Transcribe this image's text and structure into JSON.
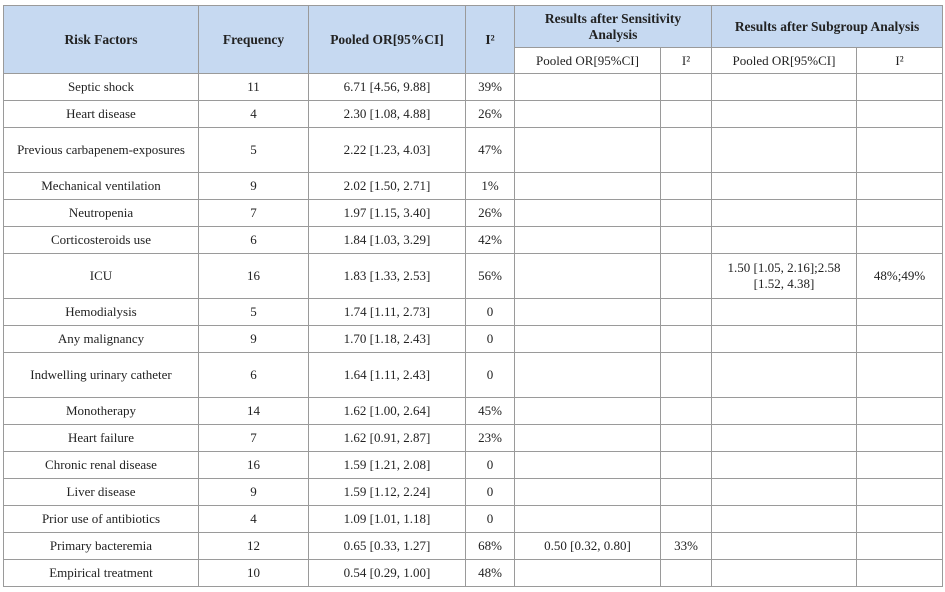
{
  "table": {
    "header": [
      "Risk Factors",
      "Frequency",
      "Pooled OR[95%CI]",
      "I²",
      "Results after Sensitivity Analysis",
      "Results after Subgroup Analysis"
    ],
    "subheader": [
      "Pooled OR[95%CI]",
      "I²",
      "Pooled OR[95%CI]",
      "I²"
    ],
    "rows": [
      {
        "factor": "Septic shock",
        "frequency": 11,
        "pooled_or": "6.71 [4.56, 9.88]",
        "i2": "39%"
      },
      {
        "factor": "Heart disease",
        "frequency": 4,
        "pooled_or": "2.30 [1.08, 4.88]",
        "i2": "26%"
      },
      {
        "factor": "Previous carbapenem-exposures",
        "frequency": 5,
        "pooled_or": "2.22 [1.23, 4.03]",
        "i2": "47%"
      },
      {
        "factor": "Mechanical ventilation",
        "frequency": 9,
        "pooled_or": "2.02 [1.50, 2.71]",
        "i2": "1%"
      },
      {
        "factor": "Neutropenia",
        "frequency": 7,
        "pooled_or": "1.97 [1.15, 3.40]",
        "i2": "26%"
      },
      {
        "factor": "Corticosteroids use",
        "frequency": 6,
        "pooled_or": "1.84 [1.03, 3.29]",
        "i2": "42%"
      },
      {
        "factor": "ICU",
        "frequency": 16,
        "pooled_or": "1.83 [1.33, 2.53]",
        "i2": "56%",
        "subgroup_or": "1.50 [1.05, 2.16];2.58 [1.52, 4.38]",
        "subgroup_i2": "48%;49%"
      },
      {
        "factor": "Hemodialysis",
        "frequency": 5,
        "pooled_or": "1.74 [1.11, 2.73]",
        "i2": "0"
      },
      {
        "factor": "Any malignancy",
        "frequency": 9,
        "pooled_or": "1.70 [1.18, 2.43]",
        "i2": "0"
      },
      {
        "factor": "Indwelling urinary catheter",
        "frequency": 6,
        "pooled_or": "1.64 [1.11, 2.43]",
        "i2": "0"
      },
      {
        "factor": "Monotherapy",
        "frequency": 14,
        "pooled_or": "1.62 [1.00, 2.64]",
        "i2": "45%"
      },
      {
        "factor": "Heart failure",
        "frequency": 7,
        "pooled_or": "1.62 [0.91, 2.87]",
        "i2": "23%"
      },
      {
        "factor": "Chronic renal disease",
        "frequency": 16,
        "pooled_or": "1.59 [1.21, 2.08]",
        "i2": "0"
      },
      {
        "factor": "Liver disease",
        "frequency": 9,
        "pooled_or": "1.59 [1.12, 2.24]",
        "i2": "0"
      },
      {
        "factor": "Prior use of antibiotics",
        "frequency": 4,
        "pooled_or": "1.09 [1.01, 1.18]",
        "i2": "0"
      },
      {
        "factor": "Primary bacteremia",
        "frequency": 12,
        "pooled_or": "0.65 [0.33, 1.27]",
        "i2": "68%",
        "sensitivity_or": "0.50 [0.32, 0.80]",
        "sensitivity_i2": "33%"
      },
      {
        "factor": "Empirical treatment",
        "frequency": 10,
        "pooled_or": "0.54 [0.29, 1.00]",
        "i2": "48%"
      }
    ]
  }
}
